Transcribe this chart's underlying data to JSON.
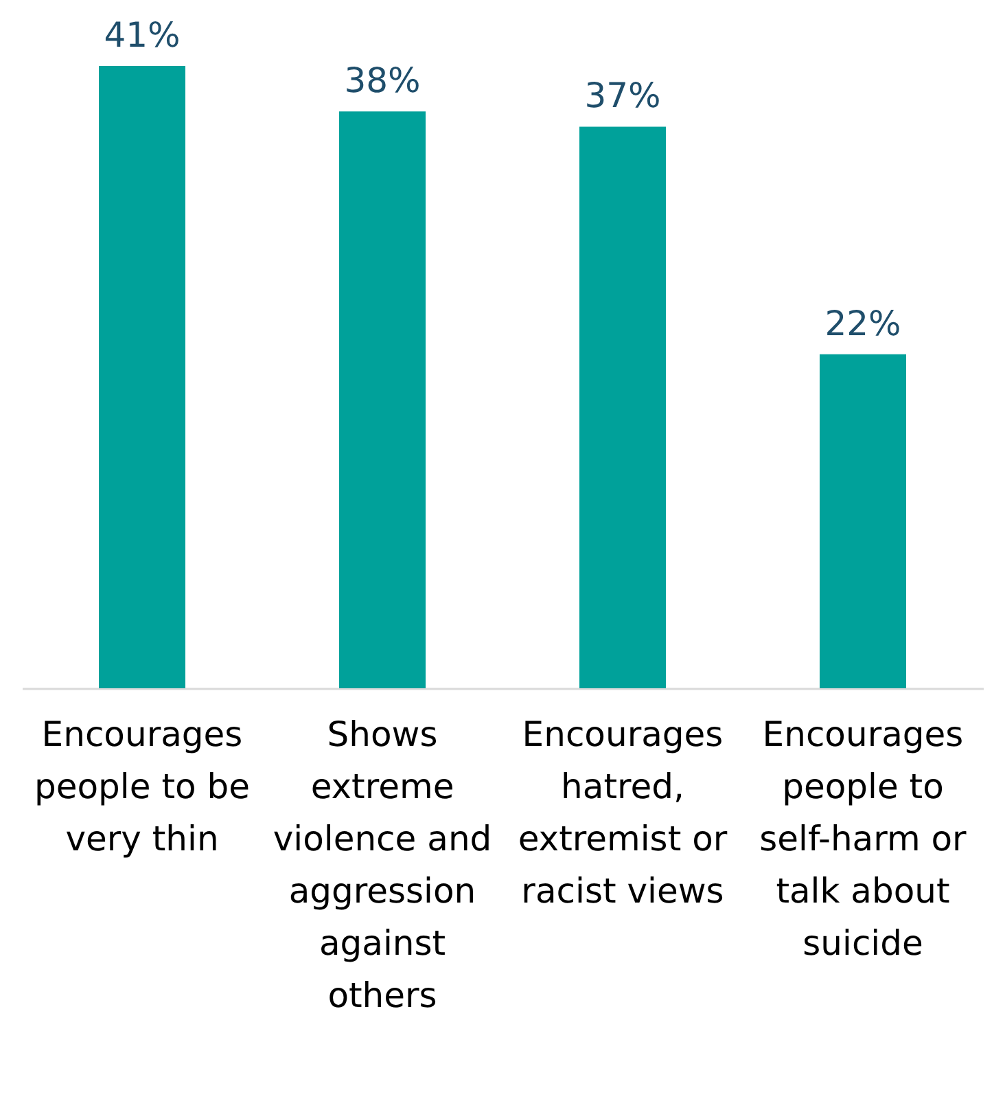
{
  "chart_data": {
    "type": "bar",
    "categories": [
      "Encourages people to be very thin",
      "Shows extreme violence and aggression against others",
      "Encourages hatred, extremist or racist views",
      "Encourages people to self-harm or talk about suicide"
    ],
    "values": [
      41,
      38,
      37,
      22
    ],
    "color": "#00a19a",
    "value_labels": [
      "41%",
      "38%",
      "37%",
      "22%"
    ],
    "grid": false
  }
}
